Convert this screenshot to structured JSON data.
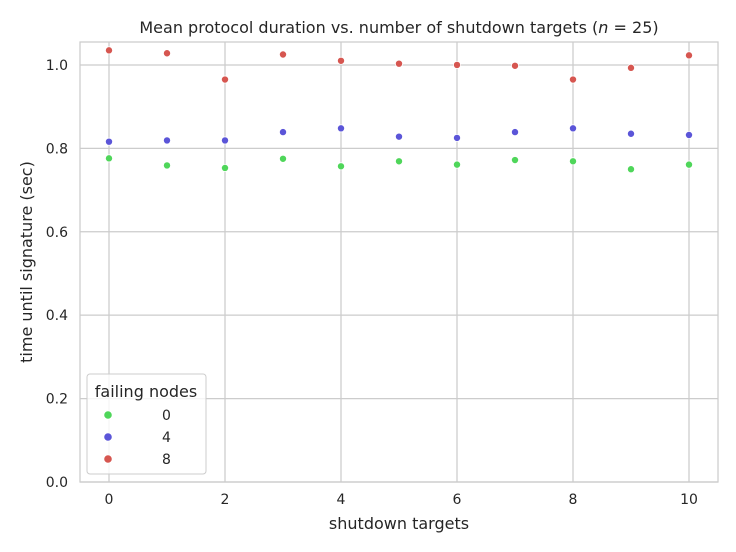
{
  "chart_data": {
    "type": "scatter",
    "title_prefix": "Mean protocol duration vs. number of shutdown targets (",
    "title_var": "n",
    "title_suffix": " = 25)",
    "xlabel": "shutdown targets",
    "ylabel": "time until signature (sec)",
    "xlim": [
      -0.5,
      10.5
    ],
    "ylim": [
      0.0,
      1.055
    ],
    "xticks": [
      0,
      2,
      4,
      6,
      8,
      10
    ],
    "yticks": [
      0.0,
      0.2,
      0.4,
      0.6,
      0.8,
      1.0
    ],
    "xtick_labels": [
      "0",
      "2",
      "4",
      "6",
      "8",
      "10"
    ],
    "ytick_labels": [
      "0.0",
      "0.2",
      "0.4",
      "0.6",
      "0.8",
      "1.0"
    ],
    "grid": true,
    "legend_title": "failing nodes",
    "legend_position": "lower-left",
    "x": [
      0,
      1,
      2,
      3,
      4,
      5,
      6,
      7,
      8,
      9,
      10
    ],
    "series": [
      {
        "name": "0",
        "color": "#4fd65a",
        "values": [
          0.776,
          0.759,
          0.753,
          0.775,
          0.757,
          0.769,
          0.761,
          0.772,
          0.769,
          0.75,
          0.761
        ]
      },
      {
        "name": "4",
        "color": "#5b55d8",
        "values": [
          0.816,
          0.819,
          0.819,
          0.839,
          0.848,
          0.828,
          0.825,
          0.839,
          0.848,
          0.835,
          0.832
        ]
      },
      {
        "name": "8",
        "color": "#d65650",
        "values": [
          1.035,
          1.028,
          0.965,
          1.025,
          1.01,
          1.003,
          1.0,
          0.998,
          0.965,
          0.993,
          1.023
        ]
      }
    ]
  }
}
